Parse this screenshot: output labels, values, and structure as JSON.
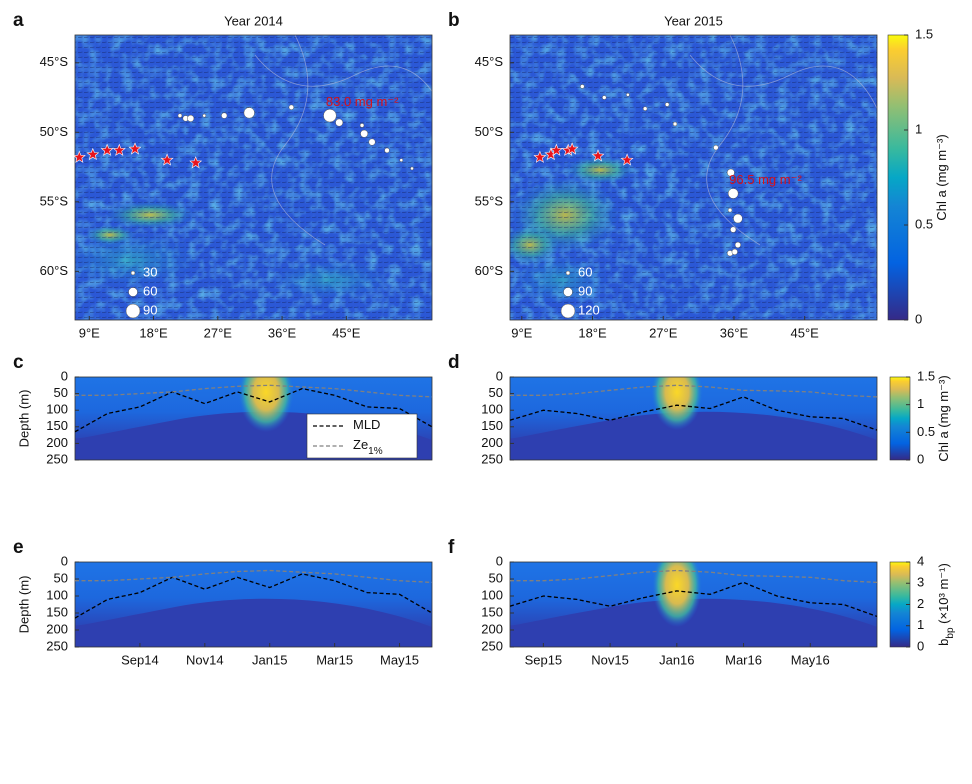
{
  "chart_data": [
    {
      "type": "map",
      "panel_label": "a",
      "title": "Year 2014",
      "xlim": [
        7,
        57
      ],
      "ylim": [
        -63.5,
        -43
      ],
      "xticks": [
        {
          "value": 9,
          "label": "9°E"
        },
        {
          "value": 18,
          "label": "18°E"
        },
        {
          "value": 27,
          "label": "27°E"
        },
        {
          "value": 36,
          "label": "36°E"
        },
        {
          "value": 45,
          "label": "45°E"
        }
      ],
      "yticks": [
        {
          "value": -45,
          "label": "45°S"
        },
        {
          "value": -50,
          "label": "50°S"
        },
        {
          "value": -55,
          "label": "55°S"
        },
        {
          "value": -60,
          "label": "60°S"
        }
      ],
      "stations": {
        "x": [
          21.7,
          22.5,
          23.2,
          25.1,
          27.9,
          31.4,
          37.3,
          42.7,
          44.0,
          47.2,
          47.5,
          48.6,
          50.7,
          52.7,
          54.2
        ],
        "y": [
          -48.8,
          -49.0,
          -49.0,
          -48.8,
          -48.8,
          -48.6,
          -48.2,
          -48.8,
          -49.3,
          -49.5,
          -50.1,
          -50.7,
          -51.3,
          -52.0,
          -52.6
        ],
        "sizes": [
          30,
          40,
          45,
          25,
          40,
          70,
          35,
          83.0,
          50,
          30,
          50,
          45,
          35,
          25,
          25
        ]
      },
      "stars": {
        "x": [
          7.6,
          9.5,
          11.5,
          13.2,
          15.4,
          19.9,
          23.9
        ],
        "y": [
          -51.8,
          -51.6,
          -51.3,
          -51.3,
          -51.2,
          -52.0,
          -52.2
        ]
      },
      "size_legend": [
        30,
        60,
        90
      ],
      "annotation": "83.0 mg m⁻²"
    },
    {
      "type": "map",
      "panel_label": "b",
      "title": "Year 2015",
      "xlim": [
        7.5,
        54.2
      ],
      "ylim": [
        -63.5,
        -43
      ],
      "xticks": [
        {
          "value": 9,
          "label": "9°E"
        },
        {
          "value": 18,
          "label": "18°E"
        },
        {
          "value": 27,
          "label": "27°E"
        },
        {
          "value": 36,
          "label": "36°E"
        },
        {
          "value": 45,
          "label": "45°E"
        }
      ],
      "yticks": [
        {
          "value": -45,
          "label": "45°S"
        },
        {
          "value": -50,
          "label": "50°S"
        },
        {
          "value": -55,
          "label": "55°S"
        },
        {
          "value": -60,
          "label": "60°S"
        }
      ],
      "stations": {
        "x": [
          16.7,
          19.5,
          22.5,
          24.7,
          27.5,
          28.5,
          33.7,
          35.6,
          35.9,
          35.5,
          36.5,
          35.9,
          35.5,
          36.1,
          36.5
        ],
        "y": [
          -46.7,
          -47.5,
          -47.3,
          -48.3,
          -48.0,
          -49.4,
          -51.1,
          -52.9,
          -54.4,
          -55.6,
          -56.2,
          -57.0,
          -58.7,
          -58.6,
          -58.1
        ],
        "sizes": [
          60,
          60,
          55,
          60,
          60,
          60,
          65,
          80,
          96.5,
          60,
          90,
          70,
          70,
          70,
          70
        ]
      },
      "stars": {
        "x": [
          11.3,
          12.7,
          13.4,
          14.9,
          15.4,
          18.7,
          22.4
        ],
        "y": [
          -51.8,
          -51.6,
          -51.3,
          -51.3,
          -51.2,
          -51.7,
          -52.0
        ]
      },
      "size_legend": [
        60,
        90,
        120
      ],
      "annotation": "96.5 mg m⁻²",
      "colorbar": {
        "label": "Chl a (mg m⁻³)",
        "lim": [
          0,
          1.5
        ],
        "ticks": [
          0,
          0.5,
          1,
          1.5
        ]
      }
    },
    {
      "type": "section",
      "panel_label": "c",
      "ylabel": "Depth (m)",
      "xlim": [
        "2014-07",
        "2015-06"
      ],
      "ylim": [
        0,
        250
      ],
      "yreversed": true,
      "yticks": [
        0,
        50,
        100,
        150,
        200,
        250
      ],
      "series": [
        {
          "name": "MLD",
          "color": "#000000",
          "x": [
            "2014-07",
            "2014-08",
            "2014-09",
            "2014-10",
            "2014-11",
            "2014-12",
            "2015-01",
            "2015-02",
            "2015-03",
            "2015-04",
            "2015-05",
            "2015-06"
          ],
          "values": [
            165,
            110,
            90,
            45,
            80,
            45,
            75,
            35,
            55,
            90,
            95,
            150
          ]
        },
        {
          "name": "Ze",
          "name_sub": "1%",
          "color": "#808080",
          "x": [
            "2014-07",
            "2014-08",
            "2014-09",
            "2014-10",
            "2014-11",
            "2014-12",
            "2015-01",
            "2015-02",
            "2015-03",
            "2015-04",
            "2015-05",
            "2015-06"
          ],
          "values": [
            55,
            55,
            50,
            45,
            35,
            28,
            25,
            30,
            35,
            45,
            55,
            60
          ]
        }
      ]
    },
    {
      "type": "section",
      "panel_label": "d",
      "xlim": [
        "2015-08",
        "2016-07"
      ],
      "ylim": [
        0,
        250
      ],
      "yreversed": true,
      "yticks": [
        0,
        50,
        100,
        150,
        200,
        250
      ],
      "series": [
        {
          "color": "#000000",
          "x": [
            "2015-08",
            "2015-09",
            "2015-10",
            "2015-11",
            "2015-12",
            "2016-01",
            "2016-02",
            "2016-03",
            "2016-04",
            "2016-05",
            "2016-06",
            "2016-07"
          ],
          "values": [
            130,
            100,
            110,
            130,
            105,
            85,
            95,
            60,
            100,
            120,
            125,
            160
          ]
        },
        {
          "color": "#808080",
          "x": [
            "2015-08",
            "2015-09",
            "2015-10",
            "2015-11",
            "2015-12",
            "2016-01",
            "2016-02",
            "2016-03",
            "2016-04",
            "2016-05",
            "2016-06",
            "2016-07"
          ],
          "values": [
            55,
            55,
            50,
            40,
            30,
            25,
            30,
            40,
            42,
            45,
            55,
            60
          ]
        }
      ],
      "colorbar": {
        "label": "Chl a (mg m⁻³)",
        "lim": [
          0,
          1.5
        ],
        "ticks": [
          0,
          0.5,
          1,
          1.5
        ]
      }
    },
    {
      "type": "section",
      "panel_label": "e",
      "ylabel": "Depth (m)",
      "xlim": [
        "2014-07",
        "2015-06"
      ],
      "ylim": [
        0,
        250
      ],
      "yreversed": true,
      "yticks": [
        0,
        50,
        100,
        150,
        200,
        250
      ],
      "xticks": [
        {
          "value": "2014-09",
          "label": "Sep14"
        },
        {
          "value": "2014-11",
          "label": "Nov14"
        },
        {
          "value": "2015-01",
          "label": "Jan15"
        },
        {
          "value": "2015-03",
          "label": "Mar15"
        },
        {
          "value": "2015-05",
          "label": "May15"
        }
      ],
      "series": [
        {
          "color": "#000000",
          "x": [
            "2014-07",
            "2014-08",
            "2014-09",
            "2014-10",
            "2014-11",
            "2014-12",
            "2015-01",
            "2015-02",
            "2015-03",
            "2015-04",
            "2015-05",
            "2015-06"
          ],
          "values": [
            165,
            110,
            90,
            45,
            80,
            45,
            75,
            35,
            55,
            90,
            95,
            150
          ]
        },
        {
          "color": "#808080",
          "x": [
            "2014-07",
            "2014-08",
            "2014-09",
            "2014-10",
            "2014-11",
            "2014-12",
            "2015-01",
            "2015-02",
            "2015-03",
            "2015-04",
            "2015-05",
            "2015-06"
          ],
          "values": [
            55,
            55,
            50,
            45,
            35,
            28,
            25,
            30,
            35,
            45,
            55,
            60
          ]
        }
      ]
    },
    {
      "type": "section",
      "panel_label": "f",
      "xlim": [
        "2015-08",
        "2016-07"
      ],
      "ylim": [
        0,
        250
      ],
      "yreversed": true,
      "yticks": [
        0,
        50,
        100,
        150,
        200,
        250
      ],
      "xticks": [
        {
          "value": "2015-09",
          "label": "Sep15"
        },
        {
          "value": "2015-11",
          "label": "Nov15"
        },
        {
          "value": "2016-01",
          "label": "Jan16"
        },
        {
          "value": "2016-03",
          "label": "Mar16"
        },
        {
          "value": "2016-05",
          "label": "May16"
        }
      ],
      "series": [
        {
          "color": "#000000",
          "x": [
            "2015-08",
            "2015-09",
            "2015-10",
            "2015-11",
            "2015-12",
            "2016-01",
            "2016-02",
            "2016-03",
            "2016-04",
            "2016-05",
            "2016-06",
            "2016-07"
          ],
          "values": [
            130,
            100,
            110,
            130,
            105,
            85,
            95,
            60,
            100,
            120,
            125,
            160
          ]
        },
        {
          "color": "#808080",
          "x": [
            "2015-08",
            "2015-09",
            "2015-10",
            "2015-11",
            "2015-12",
            "2016-01",
            "2016-02",
            "2016-03",
            "2016-04",
            "2016-05",
            "2016-06",
            "2016-07"
          ],
          "values": [
            55,
            55,
            50,
            40,
            30,
            25,
            30,
            40,
            42,
            45,
            55,
            60
          ]
        }
      ],
      "colorbar": {
        "label": "b",
        "label_sub": "bp",
        "label_rest": " (×10³ m⁻¹)",
        "lim": [
          0,
          4
        ],
        "ticks": [
          0,
          1,
          2,
          3,
          4
        ]
      }
    }
  ]
}
